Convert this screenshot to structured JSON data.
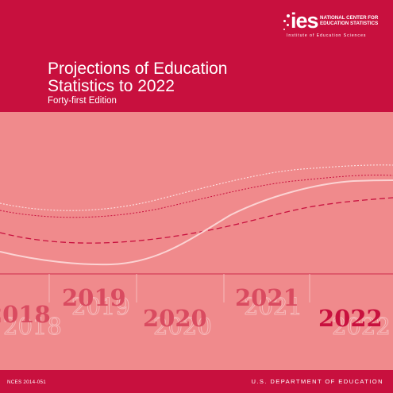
{
  "logo": {
    "word": "ies",
    "center_line1": "NATIONAL CENTER FOR",
    "center_line2": "EDUCATION STATISTICS",
    "institute": "Institute of Education Sciences"
  },
  "title_line1": "Projections of Education",
  "title_line2": "Statistics to 2022",
  "edition": "Forty-first Edition",
  "timeline": {
    "years": [
      "2018",
      "2019",
      "2020",
      "2021",
      "2022"
    ],
    "colors": {
      "panel": "#f08a8c",
      "year_dark": "#c8103e",
      "year_mid": "#d94b60",
      "year_light": "#f6b9ba"
    }
  },
  "footer": {
    "report_id": "NCES 2014-051",
    "department": "U.S. DEPARTMENT OF EDUCATION"
  }
}
